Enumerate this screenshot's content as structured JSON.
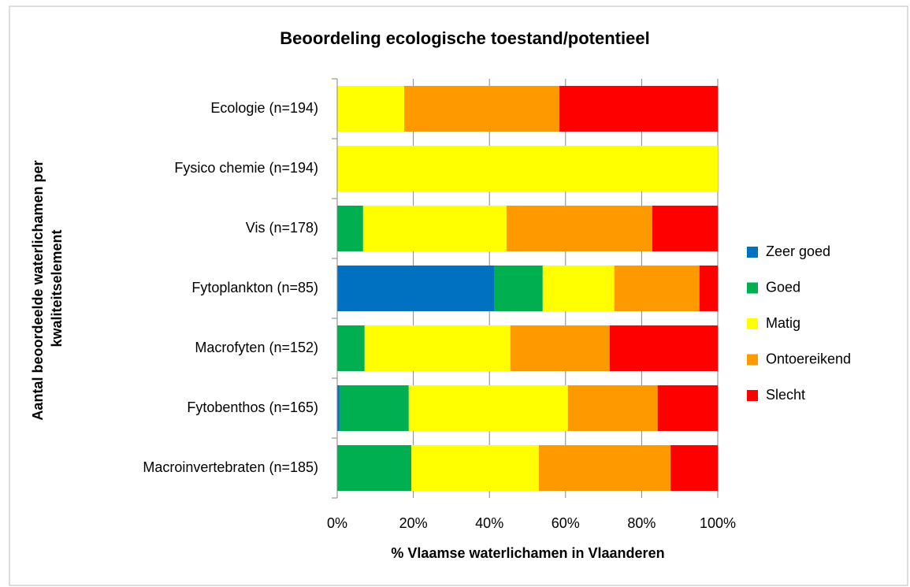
{
  "chart_data": {
    "type": "stacked-bar-horizontal",
    "title": "Beoordeling ecologische toestand/potentieel",
    "xlabel": "% Vlaamse waterlichamen in Vlaanderen",
    "ylabel": [
      "Aantal beoordeelde waterlichamen per",
      "kwaliteitselement"
    ],
    "categories": [
      "Ecologie (n=194)",
      "Fysico chemie (n=194)",
      "Vis (n=178)",
      "Fytoplankton (n=85)",
      "Macrofyten (n=152)",
      "Fytobenthos (n=165)",
      "Macroinvertebraten (n=185)"
    ],
    "series": [
      {
        "name": "Zeer goed",
        "color": "#0070c0",
        "values": [
          0,
          0,
          0,
          41.2,
          0,
          0.6,
          0
        ]
      },
      {
        "name": "Goed",
        "color": "#00b050",
        "values": [
          0,
          0,
          6.8,
          12.8,
          7.2,
          18.2,
          19.5
        ]
      },
      {
        "name": "Matig",
        "color": "#ffff00",
        "values": [
          17.6,
          100,
          37.7,
          18.8,
          38.3,
          41.8,
          33.5
        ]
      },
      {
        "name": "Ontoereikend",
        "color": "#ff9900",
        "values": [
          40.8,
          0,
          38.3,
          22.4,
          26.1,
          23.6,
          34.6
        ]
      },
      {
        "name": "Slecht",
        "color": "#ff0000",
        "values": [
          41.6,
          0,
          17.2,
          4.8,
          28.4,
          15.8,
          12.4
        ]
      }
    ],
    "xlim": [
      0,
      100
    ],
    "xticks": [
      {
        "value": 0,
        "label": "0%"
      },
      {
        "value": 20,
        "label": "20%"
      },
      {
        "value": 40,
        "label": "40%"
      },
      {
        "value": 60,
        "label": "60%"
      },
      {
        "value": 80,
        "label": "80%"
      },
      {
        "value": 100,
        "label": "100%"
      }
    ],
    "grid": true,
    "legend": "right"
  }
}
